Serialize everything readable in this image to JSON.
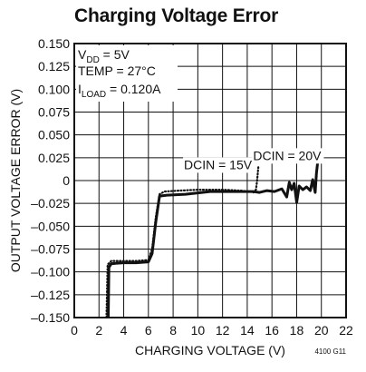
{
  "chart_data": {
    "type": "line",
    "title": "Charging Voltage Error",
    "xlabel": "CHARGING VOLTAGE (V)",
    "ylabel": "OUTPUT VOLTAGE ERROR (V)",
    "xlim": [
      0,
      22
    ],
    "ylim": [
      -0.15,
      0.15
    ],
    "x_ticks": [
      0,
      2,
      4,
      6,
      8,
      10,
      12,
      14,
      16,
      18,
      20,
      22
    ],
    "y_ticks": [
      0.15,
      0.125,
      0.1,
      0.075,
      0.05,
      0.025,
      0,
      -0.025,
      -0.05,
      -0.075,
      -0.1,
      -0.125,
      -0.15
    ],
    "x_tick_labels": [
      "0",
      "2",
      "4",
      "6",
      "8",
      "10",
      "12",
      "14",
      "16",
      "18",
      "20",
      "22"
    ],
    "y_tick_labels": [
      "0.150",
      "0.125",
      "0.100",
      "0.075",
      "0.050",
      "0.025",
      "0",
      "–0.025",
      "–0.050",
      "–0.075",
      "–0.100",
      "–0.125",
      "–0.150"
    ],
    "grid": true,
    "conditions": {
      "vdd_sym": "V",
      "vdd_sub": "DD",
      "vdd_val": " = 5V",
      "temp": "TEMP = 27°C",
      "iload_sym": "I",
      "iload_sub": "LOAD",
      "iload_val": " = 0.120A"
    },
    "series": [
      {
        "name": "DCIN = 15V",
        "style": "dotted",
        "points": [
          [
            2.6,
            -0.15
          ],
          [
            2.7,
            -0.092
          ],
          [
            3.0,
            -0.088
          ],
          [
            4.0,
            -0.088
          ],
          [
            5.0,
            -0.088
          ],
          [
            6.0,
            -0.087
          ],
          [
            6.3,
            -0.075
          ],
          [
            6.6,
            -0.04
          ],
          [
            6.9,
            -0.015
          ],
          [
            7.3,
            -0.012
          ],
          [
            8.5,
            -0.011
          ],
          [
            10.0,
            -0.01
          ],
          [
            12.0,
            -0.01
          ],
          [
            13.5,
            -0.011
          ],
          [
            14.2,
            -0.012
          ],
          [
            14.5,
            -0.013
          ],
          [
            14.7,
            -0.01
          ],
          [
            14.8,
            0.0
          ],
          [
            14.9,
            0.015
          ]
        ]
      },
      {
        "name": "DCIN = 20V",
        "style": "solid",
        "points": [
          [
            2.75,
            -0.15
          ],
          [
            2.8,
            -0.095
          ],
          [
            3.0,
            -0.091
          ],
          [
            4.0,
            -0.09
          ],
          [
            5.0,
            -0.09
          ],
          [
            6.0,
            -0.089
          ],
          [
            6.3,
            -0.08
          ],
          [
            6.6,
            -0.045
          ],
          [
            6.9,
            -0.017
          ],
          [
            7.5,
            -0.016
          ],
          [
            9.0,
            -0.015
          ],
          [
            11.0,
            -0.012
          ],
          [
            13.0,
            -0.012
          ],
          [
            14.5,
            -0.012
          ],
          [
            15.0,
            -0.013
          ],
          [
            15.6,
            -0.011
          ],
          [
            16.2,
            -0.012
          ],
          [
            16.8,
            -0.009
          ],
          [
            17.2,
            -0.018
          ],
          [
            17.4,
            -0.002
          ],
          [
            17.6,
            -0.01
          ],
          [
            17.8,
            -0.003
          ],
          [
            18.0,
            -0.024
          ],
          [
            18.2,
            -0.006
          ],
          [
            18.5,
            -0.01
          ],
          [
            18.8,
            -0.007
          ],
          [
            19.1,
            -0.011
          ],
          [
            19.3,
            0.001
          ],
          [
            19.5,
            -0.013
          ],
          [
            19.6,
            0.008
          ],
          [
            19.8,
            0.032
          ]
        ]
      }
    ],
    "annotations": [
      {
        "text": "DCIN = 15V",
        "x": 14.6,
        "y": 0.0125
      },
      {
        "text": "DCIN = 20V",
        "x": 20.2,
        "y": 0.0225
      }
    ],
    "figure_id": "4100 G11"
  }
}
